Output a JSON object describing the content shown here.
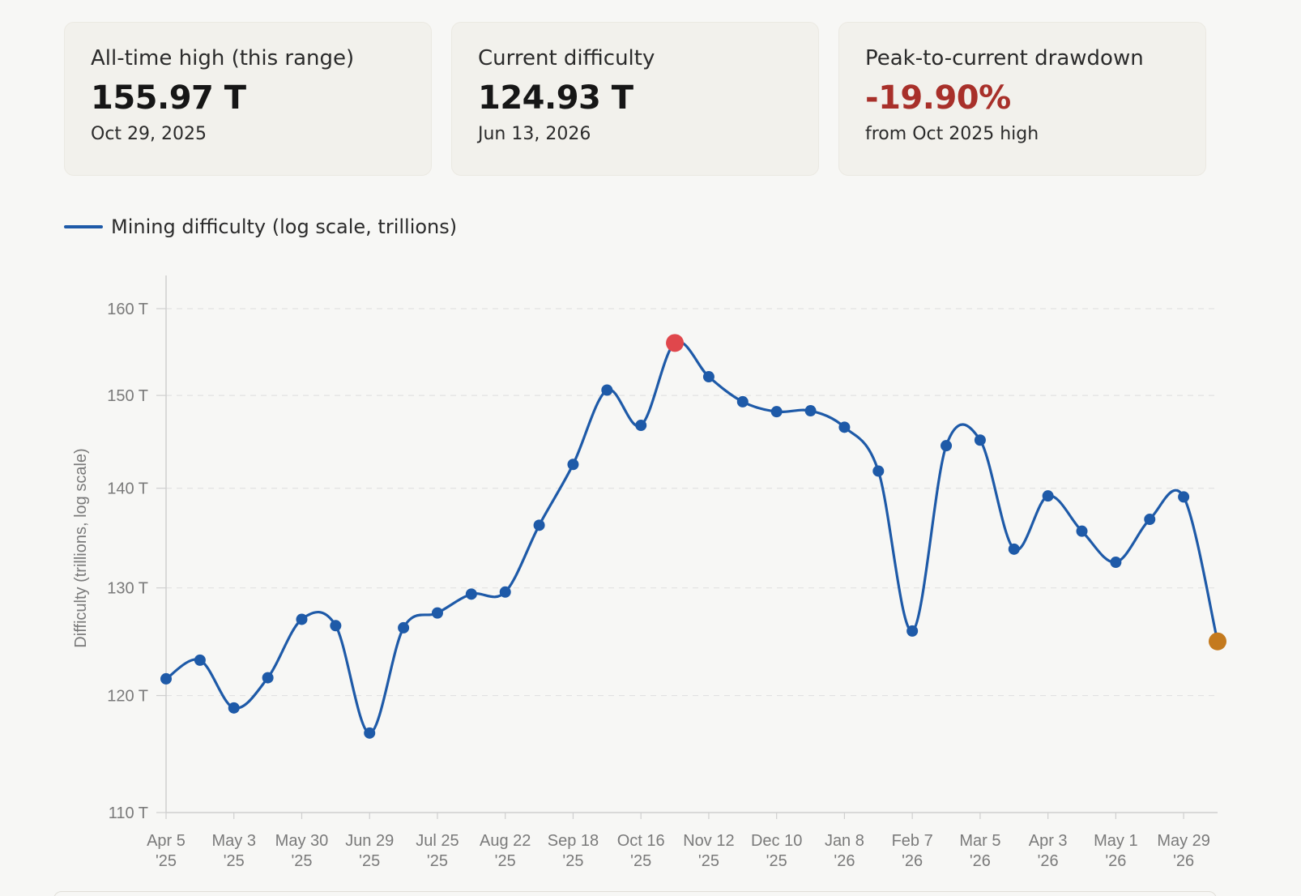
{
  "cards": [
    {
      "label": "All-time high (this range)",
      "value": "155.97 T",
      "sub": "Oct 29, 2025",
      "value_color": "#161616"
    },
    {
      "label": "Current difficulty",
      "value": "124.93 T",
      "sub": "Jun 13, 2026",
      "value_color": "#161616"
    },
    {
      "label": "Peak-to-current drawdown",
      "value": "-19.90%",
      "sub": "from Oct 2025 high",
      "value_color": "#a8302a"
    }
  ],
  "legend": {
    "label": "Mining difficulty (log scale, trillions)",
    "color": "#1e5aa8"
  },
  "chart_data": {
    "type": "line",
    "scale": "log",
    "ylabel": "Difficulty (trillions, log scale)",
    "ylim": [
      110,
      164
    ],
    "yticks": [
      110,
      120,
      130,
      140,
      150,
      160
    ],
    "ytick_labels": [
      "110 T",
      "120 T",
      "130 T",
      "140 T",
      "150 T",
      "160 T"
    ],
    "xticks": [
      {
        "line1": "Apr 5",
        "line2": "'25"
      },
      {
        "line1": "May 3",
        "line2": "'25"
      },
      {
        "line1": "May 30",
        "line2": "'25"
      },
      {
        "line1": "Jun 29",
        "line2": "'25"
      },
      {
        "line1": "Jul 25",
        "line2": "'25"
      },
      {
        "line1": "Aug 22",
        "line2": "'25"
      },
      {
        "line1": "Sep 18",
        "line2": "'25"
      },
      {
        "line1": "Oct 16",
        "line2": "'25"
      },
      {
        "line1": "Nov 12",
        "line2": "'25"
      },
      {
        "line1": "Dec 10",
        "line2": "'25"
      },
      {
        "line1": "Jan 8",
        "line2": "'26"
      },
      {
        "line1": "Feb 7",
        "line2": "'26"
      },
      {
        "line1": "Mar 5",
        "line2": "'26"
      },
      {
        "line1": "Apr 3",
        "line2": "'26"
      },
      {
        "line1": "May 1",
        "line2": "'26"
      },
      {
        "line1": "May 29",
        "line2": "'26"
      }
    ],
    "series": [
      {
        "name": "Mining difficulty (log scale, trillions)",
        "color": "#1e5aa8",
        "values": [
          121.5,
          123.2,
          118.9,
          121.6,
          127.0,
          126.4,
          116.7,
          126.2,
          127.6,
          129.4,
          129.6,
          136.2,
          142.5,
          150.6,
          146.7,
          155.97,
          152.1,
          149.3,
          148.2,
          148.3,
          146.5,
          141.8,
          125.9,
          144.5,
          145.1,
          133.8,
          139.2,
          135.6,
          132.5,
          136.8,
          139.1,
          124.93
        ]
      }
    ],
    "highlights": {
      "peak": {
        "label": "Oct 29, 2025",
        "value": 155.97,
        "color": "#e0474c"
      },
      "current": {
        "label": "Jun 13, 2026",
        "value": 124.93,
        "color": "#c47a1e"
      }
    },
    "grid": true,
    "grid_style": "dashed",
    "colors": {
      "axis": "#cfcfcf",
      "grid": "#e2e2e2",
      "tick_text": "#7a7a7a"
    }
  }
}
